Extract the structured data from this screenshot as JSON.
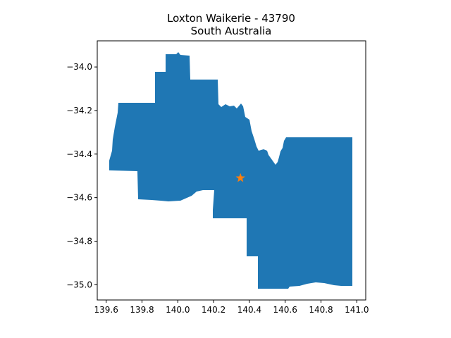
{
  "figure": {
    "title_line1": "Loxton Waikerie - 43790",
    "title_line2": "South Australia"
  },
  "map": {
    "region_color": "#1f77b4",
    "marker_color": "#ff7f0e",
    "marker_shape": "star-icon",
    "marker_location": {
      "lon": 140.35,
      "lat": -34.51
    },
    "xlim": [
      139.55,
      141.05
    ],
    "ylim": [
      -35.07,
      -33.88
    ],
    "x_ticks": [
      {
        "value": 139.6,
        "label": "139.6"
      },
      {
        "value": 139.8,
        "label": "139.8"
      },
      {
        "value": 140.0,
        "label": "140.0"
      },
      {
        "value": 140.2,
        "label": "140.2"
      },
      {
        "value": 140.4,
        "label": "140.4"
      },
      {
        "value": 140.6,
        "label": "140.6"
      },
      {
        "value": 140.8,
        "label": "140.8"
      },
      {
        "value": 141.0,
        "label": "141.0"
      }
    ],
    "y_ticks": [
      {
        "value": -34.0,
        "label": "−34.0"
      },
      {
        "value": -34.2,
        "label": "−34.2"
      },
      {
        "value": -34.4,
        "label": "−34.4"
      },
      {
        "value": -34.6,
        "label": "−34.6"
      },
      {
        "value": -34.8,
        "label": "−34.8"
      },
      {
        "value": -35.0,
        "label": "−35.0"
      }
    ]
  }
}
